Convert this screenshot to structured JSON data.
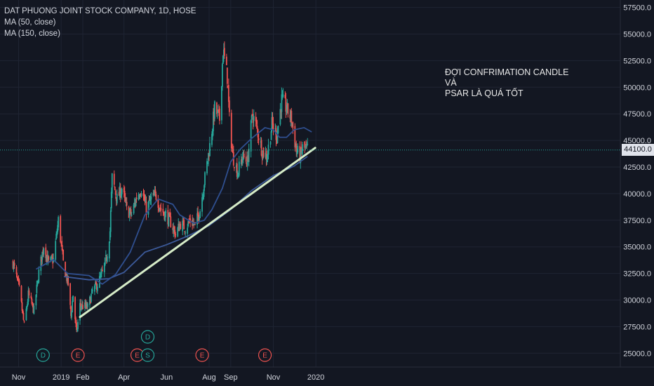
{
  "legend": {
    "symbol": "DAT PHUONG JOINT STOCK COMPANY, 1D, HOSE",
    "ma50": "MA (50, close)",
    "ma150": "MA (150, close)"
  },
  "annotation": "ĐỢI CONFRIMATION CANDLE VÀ\nPSAR LÀ QUÁ TỐT",
  "last_price": "44100.0",
  "colors": {
    "background": "#131722",
    "grid": "#1f2433",
    "up": "#26a69a",
    "down": "#ef5350",
    "ma50": "#2f4f8f",
    "ma150": "#3c5a9a",
    "trendline": "#d6ecc8",
    "last_price_line": "#26a69a",
    "earnings": "#ef5350",
    "dividend": "#26a69a"
  },
  "chart_data": {
    "type": "candlestick",
    "y_axis": {
      "range": [
        23700,
        58200
      ],
      "ticks": [
        25000,
        27500,
        30000,
        32500,
        35000,
        37500,
        40000,
        42500,
        45000,
        47500,
        50000,
        52500,
        55000,
        57500
      ],
      "tick_labels": [
        "25000.0",
        "27500.0",
        "30000.0",
        "32500.0",
        "35000.0",
        "37500.0",
        "40000.0",
        "42500.0",
        "45000.0",
        "47500.0",
        "50000.0",
        "52500.0",
        "55000.0",
        "57500.0"
      ]
    },
    "x_axis": {
      "labels": [
        "Nov",
        "2019",
        "Feb",
        "Apr",
        "Jun",
        "Aug",
        "Sep",
        "Nov",
        "2020"
      ],
      "label_dates": [
        "2018-11-01",
        "2019-01-01",
        "2019-02-01",
        "2019-04-01",
        "2019-06-01",
        "2019-08-01",
        "2019-09-01",
        "2019-11-01",
        "2020-01-01"
      ]
    },
    "price_path": [
      [
        "2018-10-24",
        33500
      ],
      [
        "2018-11-02",
        31000
      ],
      [
        "2018-11-09",
        27600
      ],
      [
        "2018-11-15",
        30500
      ],
      [
        "2018-11-23",
        29000
      ],
      [
        "2018-11-30",
        32600
      ],
      [
        "2018-12-07",
        35100
      ],
      [
        "2018-12-14",
        33500
      ],
      [
        "2018-12-21",
        33800
      ],
      [
        "2018-12-28",
        37500
      ],
      [
        "2019-01-04",
        33500
      ],
      [
        "2019-01-11",
        31500
      ],
      [
        "2019-01-15",
        28500
      ],
      [
        "2019-01-18",
        30500
      ],
      [
        "2019-01-23",
        26800
      ],
      [
        "2019-01-28",
        29500
      ],
      [
        "2019-02-08",
        29300
      ],
      [
        "2019-02-15",
        30800
      ],
      [
        "2019-02-22",
        31500
      ],
      [
        "2019-03-01",
        32500
      ],
      [
        "2019-03-07",
        34000
      ],
      [
        "2019-03-12",
        36500
      ],
      [
        "2019-03-15",
        41500
      ],
      [
        "2019-03-22",
        39500
      ],
      [
        "2019-03-29",
        40500
      ],
      [
        "2019-04-05",
        38500
      ],
      [
        "2019-04-12",
        38000
      ],
      [
        "2019-04-19",
        39700
      ],
      [
        "2019-04-26",
        40500
      ],
      [
        "2019-05-03",
        38500
      ],
      [
        "2019-05-10",
        39500
      ],
      [
        "2019-05-17",
        39800
      ],
      [
        "2019-05-24",
        38500
      ],
      [
        "2019-05-31",
        38000
      ],
      [
        "2019-06-07",
        37300
      ],
      [
        "2019-06-14",
        36200
      ],
      [
        "2019-06-21",
        37200
      ],
      [
        "2019-06-28",
        36800
      ],
      [
        "2019-07-05",
        37500
      ],
      [
        "2019-07-12",
        37000
      ],
      [
        "2019-07-19",
        38500
      ],
      [
        "2019-07-26",
        41500
      ],
      [
        "2019-08-02",
        44500
      ],
      [
        "2019-08-09",
        48000
      ],
      [
        "2019-08-16",
        47000
      ],
      [
        "2019-08-21",
        53500
      ],
      [
        "2019-08-27",
        51000
      ],
      [
        "2019-08-30",
        47000
      ],
      [
        "2019-09-04",
        43500
      ],
      [
        "2019-09-11",
        42000
      ],
      [
        "2019-09-18",
        43500
      ],
      [
        "2019-09-25",
        43000
      ],
      [
        "2019-10-02",
        47500
      ],
      [
        "2019-10-09",
        46000
      ],
      [
        "2019-10-16",
        44000
      ],
      [
        "2019-10-23",
        43500
      ],
      [
        "2019-10-30",
        46500
      ],
      [
        "2019-11-06",
        45500
      ],
      [
        "2019-11-13",
        48800
      ],
      [
        "2019-11-20",
        48000
      ],
      [
        "2019-11-27",
        47000
      ],
      [
        "2019-12-04",
        44000
      ],
      [
        "2019-12-10",
        43500
      ],
      [
        "2019-12-13",
        44300
      ],
      [
        "2019-12-20",
        44100
      ]
    ],
    "ma50": [
      [
        "2018-11-26",
        32900
      ],
      [
        "2018-12-21",
        33800
      ],
      [
        "2019-01-10",
        32500
      ],
      [
        "2019-02-10",
        32300
      ],
      [
        "2019-03-01",
        31500
      ],
      [
        "2019-03-20",
        32400
      ],
      [
        "2019-04-10",
        34500
      ],
      [
        "2019-05-01",
        38000
      ],
      [
        "2019-05-20",
        39500
      ],
      [
        "2019-06-10",
        39000
      ],
      [
        "2019-06-20",
        38000
      ],
      [
        "2019-07-10",
        37200
      ],
      [
        "2019-07-25",
        37500
      ],
      [
        "2019-08-05",
        38500
      ],
      [
        "2019-08-20",
        40500
      ],
      [
        "2019-09-01",
        43000
      ],
      [
        "2019-09-15",
        44200
      ],
      [
        "2019-10-01",
        45200
      ],
      [
        "2019-10-20",
        46200
      ],
      [
        "2019-11-01",
        46000
      ],
      [
        "2019-11-10",
        45300
      ],
      [
        "2019-11-20",
        45300
      ],
      [
        "2019-12-01",
        46000
      ],
      [
        "2019-12-15",
        46200
      ],
      [
        "2019-12-26",
        45800
      ]
    ],
    "ma150": [
      [
        "2019-01-05",
        32200
      ],
      [
        "2019-02-10",
        31900
      ],
      [
        "2019-03-10",
        32000
      ],
      [
        "2019-04-01",
        32600
      ],
      [
        "2019-05-01",
        34500
      ],
      [
        "2019-06-01",
        35200
      ],
      [
        "2019-07-01",
        36000
      ],
      [
        "2019-08-01",
        37000
      ],
      [
        "2019-09-01",
        38500
      ],
      [
        "2019-10-01",
        40300
      ],
      [
        "2019-11-01",
        41700
      ],
      [
        "2019-12-01",
        42600
      ],
      [
        "2019-12-20",
        43500
      ]
    ],
    "trendline": [
      [
        "2019-01-28",
        28400
      ],
      [
        "2019-12-31",
        44300
      ]
    ],
    "last_price_value": 44100,
    "events": [
      {
        "type": "dividend",
        "label": "D",
        "date": "2018-12-06"
      },
      {
        "type": "earnings",
        "label": "E",
        "date": "2019-01-25"
      },
      {
        "type": "earnings",
        "label": "E",
        "date": "2019-04-20"
      },
      {
        "type": "dividend",
        "label": "D",
        "date": "2019-05-05",
        "stacked": true
      },
      {
        "type": "split",
        "label": "S",
        "date": "2019-05-05"
      },
      {
        "type": "earnings",
        "label": "E",
        "date": "2019-07-22"
      },
      {
        "type": "earnings",
        "label": "E",
        "date": "2019-10-20"
      }
    ]
  }
}
